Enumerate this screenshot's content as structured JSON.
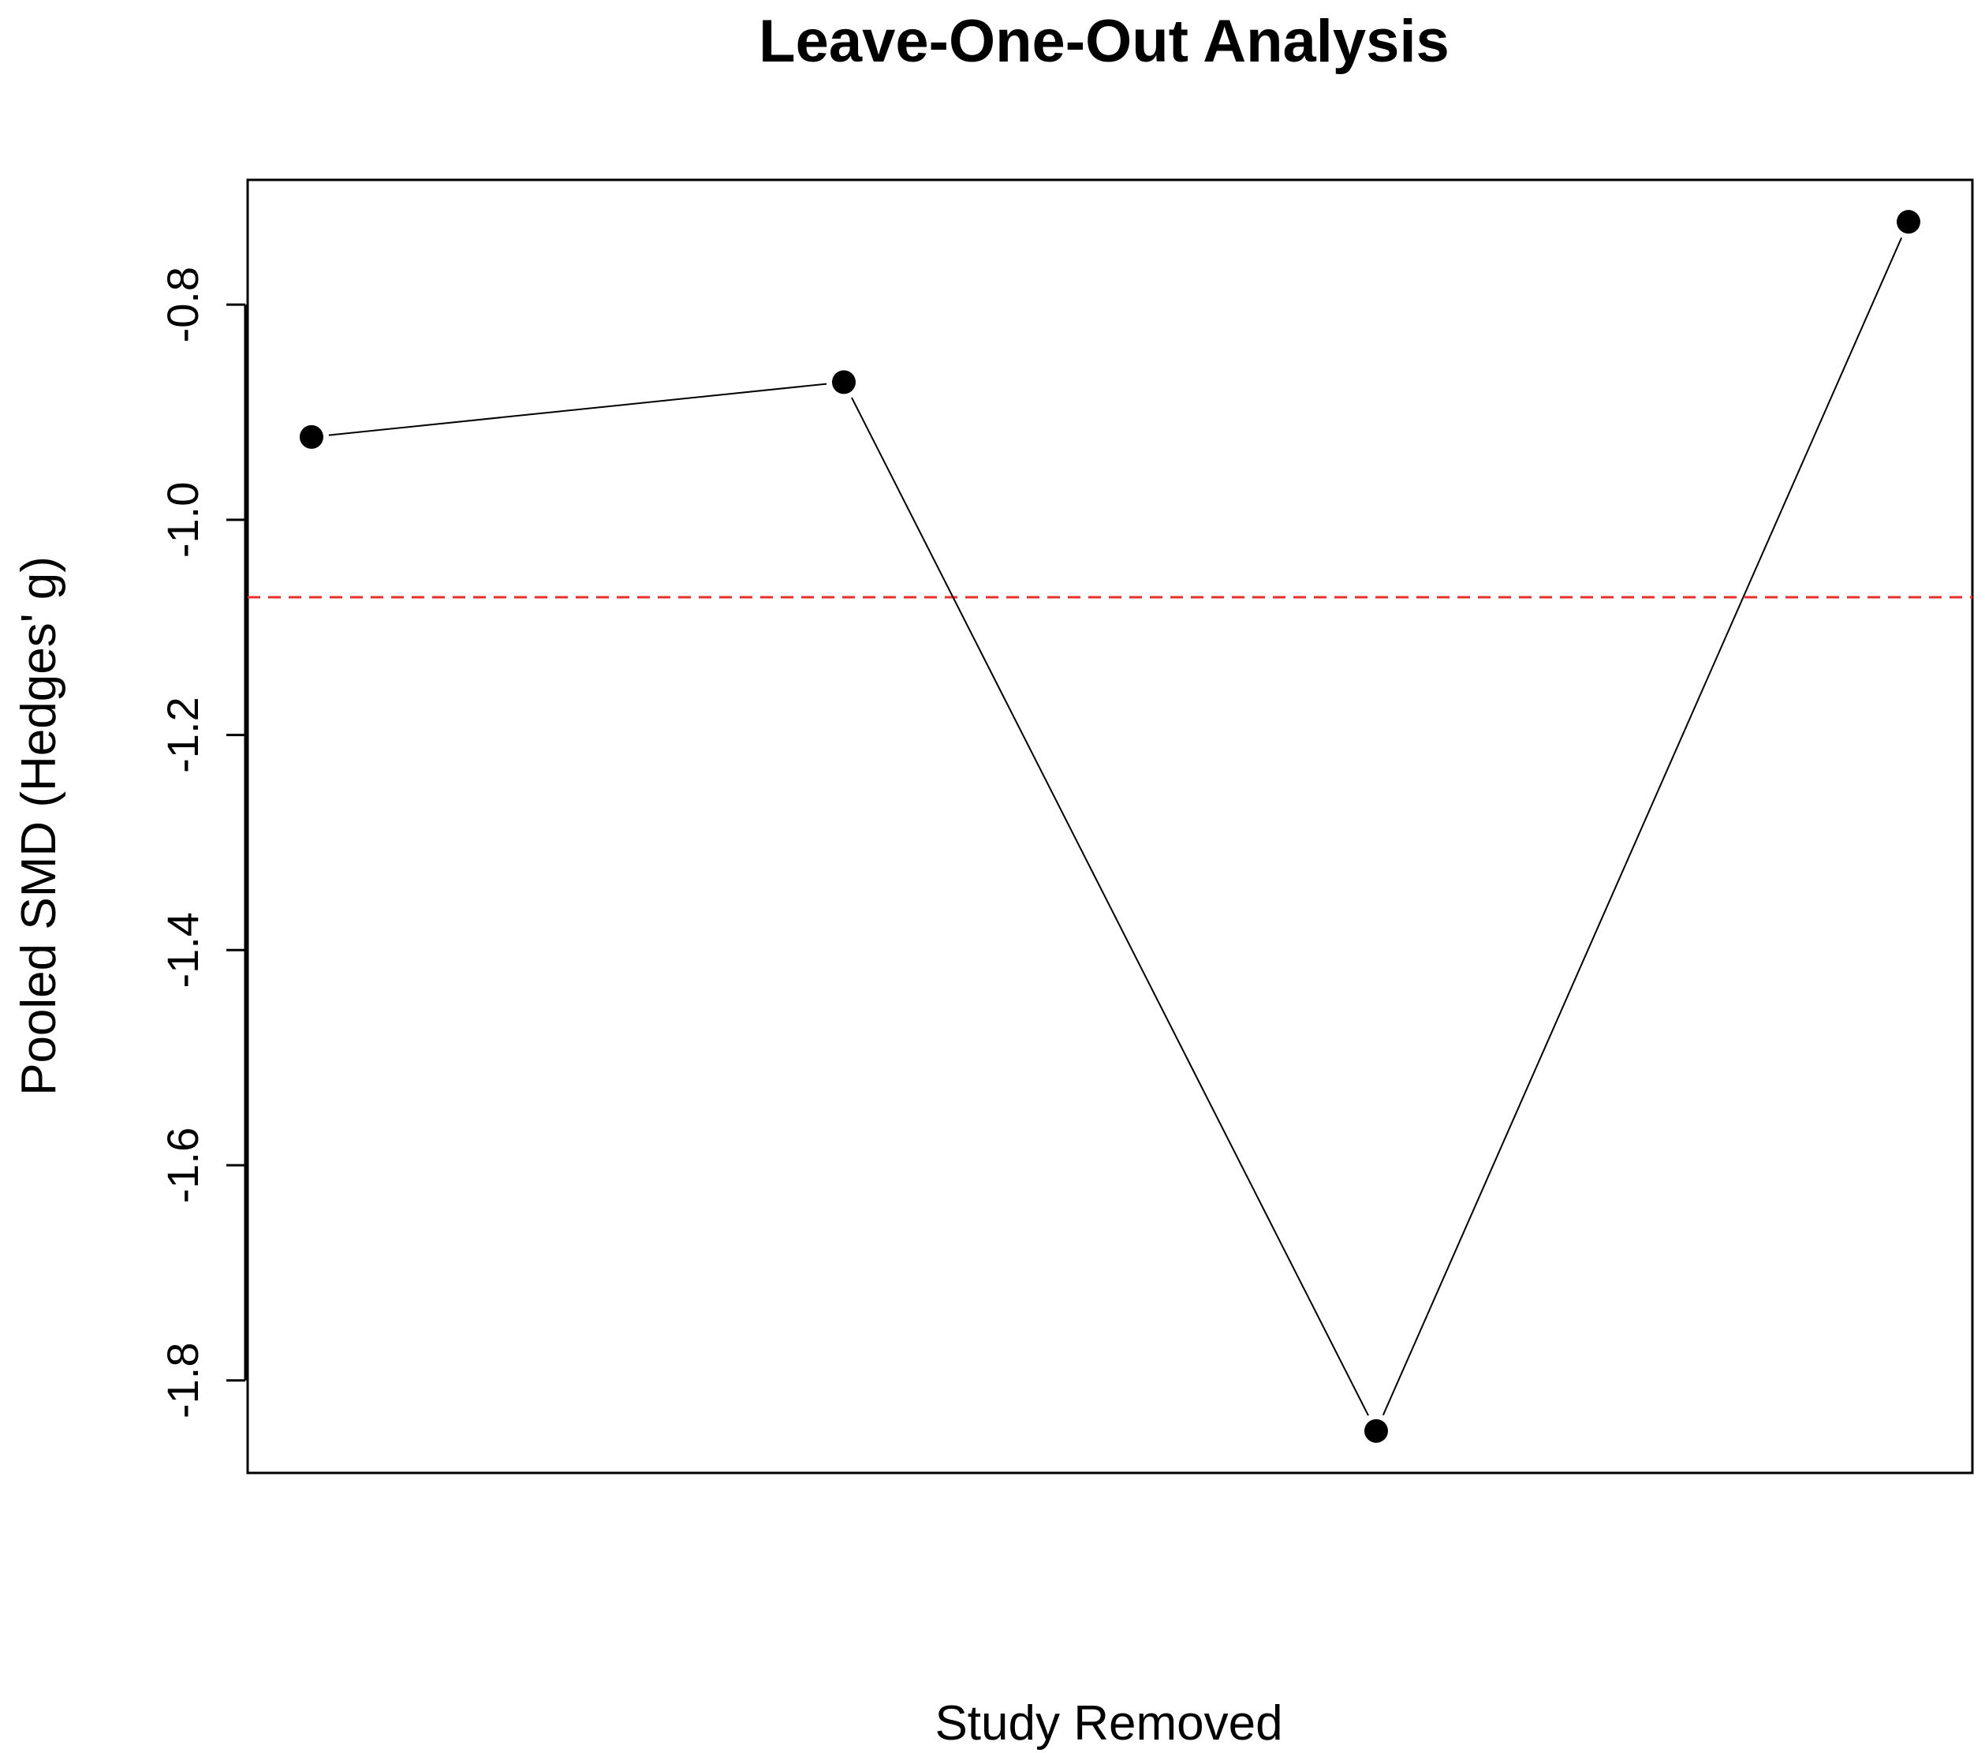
{
  "chart_data": {
    "type": "line",
    "title": "Leave-One-Out Analysis",
    "xlabel": "Study Removed",
    "ylabel": "Pooled SMD (Hedges' g)",
    "x": [
      1,
      2,
      3,
      4
    ],
    "series": [
      {
        "values": [
          -0.923,
          -0.872,
          -1.847,
          -0.723
        ]
      }
    ],
    "reference_line": {
      "y": -1.072,
      "style": "dashed",
      "color": "#e8302a"
    },
    "y_ticks": [
      -0.8,
      -1.0,
      -1.2,
      -1.4,
      -1.6,
      -1.8
    ],
    "y_tick_labels": [
      "-0.8",
      "-1.0",
      "-1.2",
      "-1.4",
      "-1.6",
      "-1.8"
    ],
    "ylim": [
      -1.886,
      -0.684
    ],
    "xlim": [
      0.88,
      4.12
    ],
    "grid": false,
    "legend": "none",
    "point_color": "#000000",
    "line_color": "#000000"
  }
}
